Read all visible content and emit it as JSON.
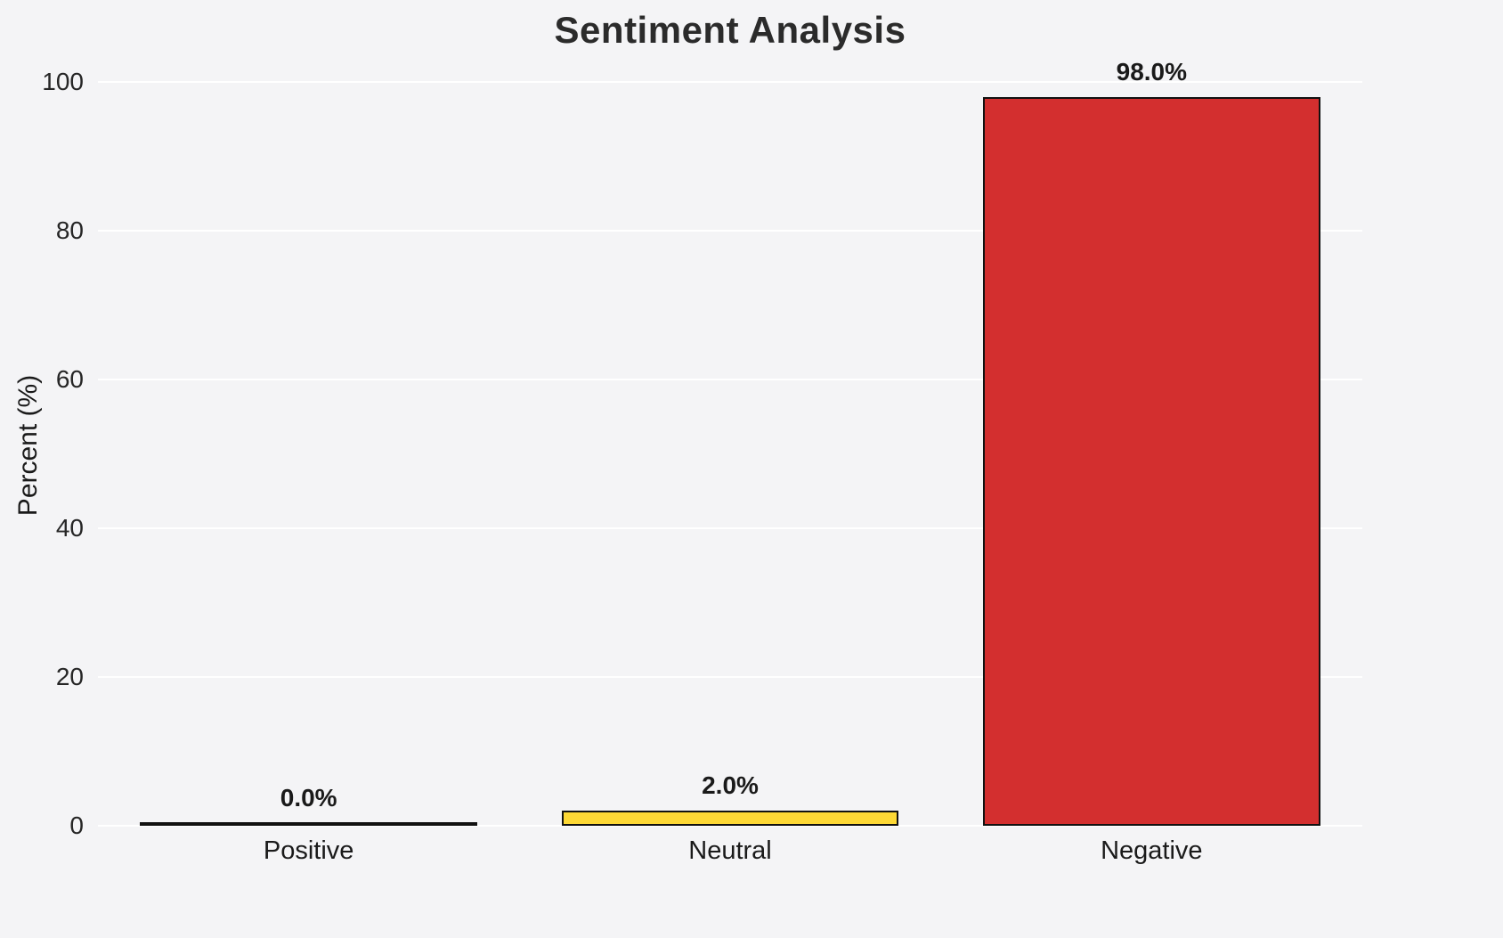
{
  "chart_data": {
    "type": "bar",
    "title": "Sentiment Analysis",
    "xlabel": "",
    "ylabel": "Percent (%)",
    "categories": [
      "Positive",
      "Neutral",
      "Negative"
    ],
    "values": [
      0.0,
      2.0,
      98.0
    ],
    "value_labels": [
      "0.0%",
      "2.0%",
      "98.0%"
    ],
    "bar_colors": [
      "#f4f4f6",
      "#fdd835",
      "#d32f2f"
    ],
    "bar_edge_color": "#111111",
    "ylim": [
      0,
      100
    ],
    "yticks": [
      0,
      20,
      40,
      60,
      80,
      100
    ],
    "grid": true,
    "background_color": "#f4f4f6",
    "gridline_color": "#ffffff",
    "legend": null
  }
}
